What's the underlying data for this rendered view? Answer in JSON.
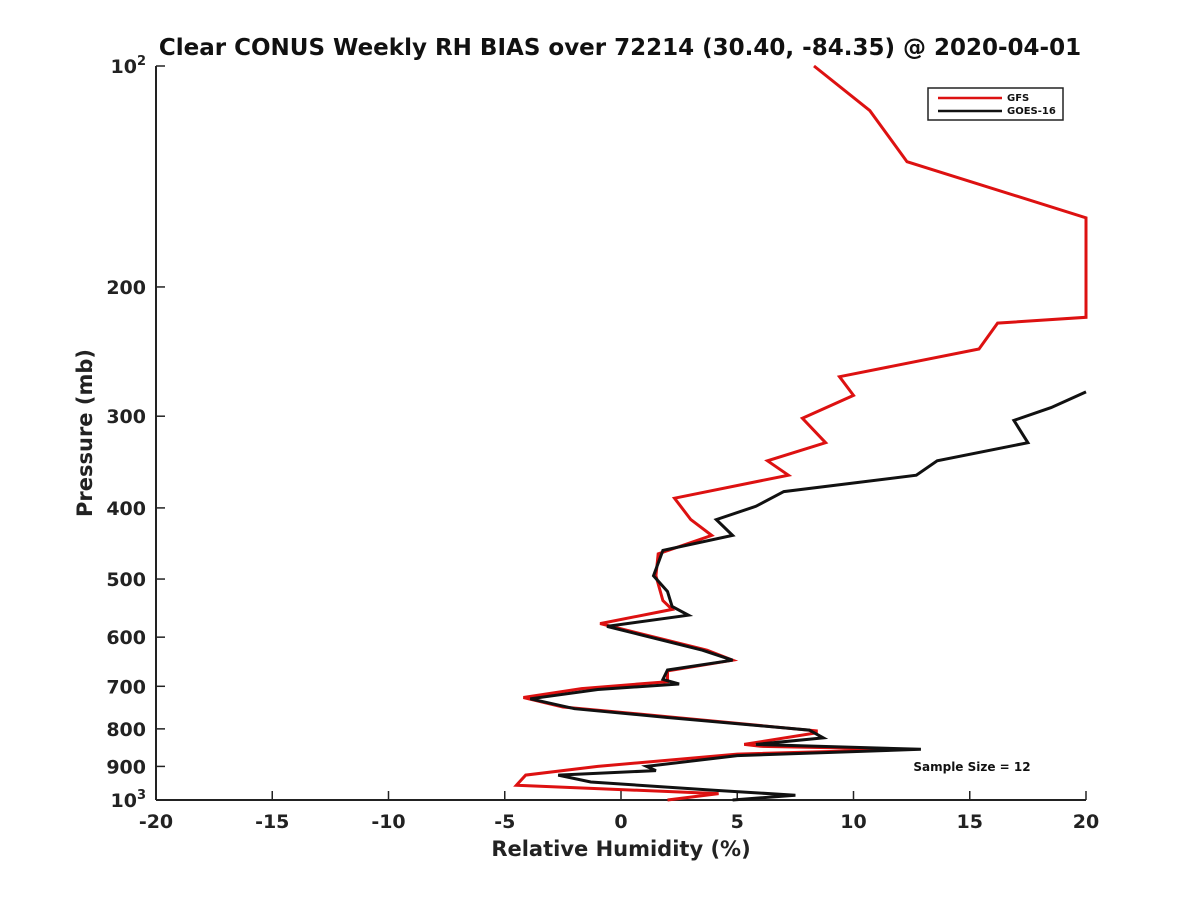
{
  "chart_data": {
    "type": "line",
    "title": "Clear CONUS Weekly RH BIAS over 72214 (30.40, -84.35) @ 2020-04-01",
    "xlabel": "Relative Humidity (%)",
    "ylabel": "Pressure (mb)",
    "xlim": [
      -20,
      20
    ],
    "ylim": [
      100,
      1000
    ],
    "yscale": "log",
    "yreversed": true,
    "grid": false,
    "legend_position": "top-right",
    "x_ticks": [
      -20,
      -15,
      -10,
      -5,
      0,
      5,
      10,
      15,
      20
    ],
    "x_tick_labels": [
      "-20",
      "-15",
      "-10",
      "-5",
      "0",
      "5",
      "10",
      "15",
      "20"
    ],
    "y_ticks": [
      100,
      200,
      300,
      400,
      500,
      600,
      700,
      800,
      900,
      1000
    ],
    "y_tick_labels": [
      {
        "base": "10",
        "sup": "2"
      },
      {
        "base": "200",
        "sup": ""
      },
      {
        "base": "300",
        "sup": ""
      },
      {
        "base": "400",
        "sup": ""
      },
      {
        "base": "500",
        "sup": ""
      },
      {
        "base": "600",
        "sup": ""
      },
      {
        "base": "700",
        "sup": ""
      },
      {
        "base": "800",
        "sup": ""
      },
      {
        "base": "900",
        "sup": ""
      },
      {
        "base": "10",
        "sup": "3"
      }
    ],
    "annotation": "Sample Size = 12",
    "series": [
      {
        "name": "GFS",
        "color": "#dd1111",
        "points": [
          [
            8.3,
            100
          ],
          [
            10.7,
            115
          ],
          [
            12.3,
            135
          ],
          [
            20.0,
            161
          ],
          [
            20.0,
            220
          ],
          [
            16.2,
            224
          ],
          [
            15.4,
            243
          ],
          [
            9.4,
            265
          ],
          [
            10.0,
            281
          ],
          [
            7.8,
            302
          ],
          [
            8.8,
            326
          ],
          [
            6.3,
            345
          ],
          [
            7.2,
            361
          ],
          [
            2.3,
            388
          ],
          [
            3.0,
            415
          ],
          [
            3.9,
            436
          ],
          [
            1.6,
            462
          ],
          [
            1.5,
            495
          ],
          [
            1.8,
            535
          ],
          [
            2.2,
            550
          ],
          [
            -0.9,
            575
          ],
          [
            3.7,
            625
          ],
          [
            4.8,
            645
          ],
          [
            2.0,
            667
          ],
          [
            2.0,
            690
          ],
          [
            -1.7,
            705
          ],
          [
            -4.2,
            725
          ],
          [
            -2.5,
            747
          ],
          [
            2.0,
            770
          ],
          [
            8.4,
            805
          ],
          [
            8.4,
            810
          ],
          [
            5.3,
            840
          ],
          [
            6.0,
            845
          ],
          [
            12.4,
            853
          ],
          [
            5.0,
            866
          ],
          [
            -1.0,
            900
          ],
          [
            -4.1,
            925
          ],
          [
            -4.5,
            955
          ],
          [
            4.2,
            980
          ],
          [
            2.0,
            1000
          ]
        ]
      },
      {
        "name": "GOES-16",
        "color": "#111111",
        "points": [
          [
            20.0,
            278
          ],
          [
            18.5,
            292
          ],
          [
            16.9,
            304
          ],
          [
            17.5,
            326
          ],
          [
            13.6,
            345
          ],
          [
            12.7,
            361
          ],
          [
            7.0,
            380
          ],
          [
            5.8,
            398
          ],
          [
            4.1,
            415
          ],
          [
            4.8,
            436
          ],
          [
            1.8,
            457
          ],
          [
            1.4,
            495
          ],
          [
            2.0,
            520
          ],
          [
            2.2,
            545
          ],
          [
            2.9,
            560
          ],
          [
            -0.6,
            580
          ],
          [
            3.5,
            625
          ],
          [
            4.8,
            645
          ],
          [
            2.0,
            665
          ],
          [
            1.8,
            685
          ],
          [
            2.5,
            695
          ],
          [
            -1.0,
            707
          ],
          [
            -3.9,
            728
          ],
          [
            -2.0,
            751
          ],
          [
            2.0,
            772
          ],
          [
            8.1,
            803
          ],
          [
            8.7,
            823
          ],
          [
            5.8,
            840
          ],
          [
            12.9,
            853
          ],
          [
            5.0,
            870
          ],
          [
            1.1,
            900
          ],
          [
            1.5,
            912
          ],
          [
            -2.7,
            925
          ],
          [
            -1.3,
            945
          ],
          [
            4.0,
            970
          ],
          [
            7.5,
            985
          ],
          [
            4.8,
            1000
          ]
        ]
      }
    ]
  }
}
